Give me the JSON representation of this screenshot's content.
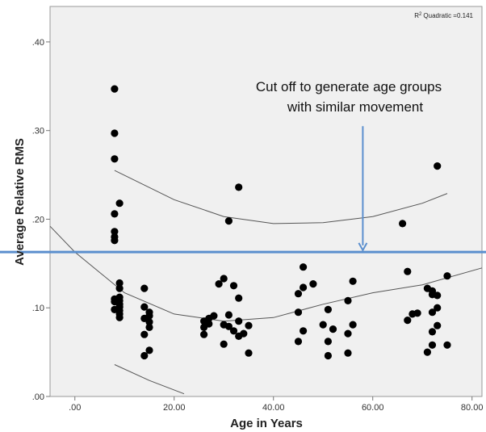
{
  "chart_data": {
    "type": "scatter",
    "xlabel": "Age in Years",
    "ylabel": "Average Relative RMS",
    "xlim": [
      -5,
      82
    ],
    "ylim": [
      0,
      0.44
    ],
    "xticks": [
      0,
      20,
      40,
      60,
      80
    ],
    "xtick_labels": [
      ".00",
      "20.00",
      "40.00",
      "60.00",
      "80.00"
    ],
    "yticks": [
      0,
      0.1,
      0.2,
      0.3,
      0.4
    ],
    "ytick_labels": [
      ".00",
      ".10",
      ".20",
      ".30",
      ".40"
    ],
    "grid": false,
    "r2_label": "Quadratic =0.141",
    "r2_prefix": "R",
    "r2_sup": "2",
    "fit": {
      "type": "quadratic",
      "mean_curve_x": [
        -5,
        0,
        10,
        20,
        30,
        40,
        50,
        60,
        70,
        82
      ],
      "mean_curve_y": [
        0.192,
        0.163,
        0.117,
        0.093,
        0.085,
        0.089,
        0.104,
        0.117,
        0.126,
        0.145
      ],
      "upper_ci_x": [
        8,
        20,
        30,
        40,
        50,
        60,
        70,
        75
      ],
      "upper_ci_y": [
        0.255,
        0.222,
        0.203,
        0.195,
        0.196,
        0.203,
        0.218,
        0.229
      ],
      "lower_ci_x": [
        8,
        15,
        22
      ],
      "lower_ci_y": [
        0.036,
        0.018,
        0.003
      ]
    },
    "threshold": {
      "y": 0.163,
      "color": "#5b8fce"
    },
    "annotation": {
      "line1": "Cut off to generate age groups",
      "line2": "with similar movement",
      "arrow_x": 58,
      "arrow_from_y": 0.305,
      "arrow_to_y": 0.165
    },
    "points": [
      [
        8,
        0.347
      ],
      [
        8,
        0.297
      ],
      [
        8,
        0.268
      ],
      [
        9,
        0.218
      ],
      [
        8,
        0.206
      ],
      [
        8,
        0.186
      ],
      [
        8,
        0.18
      ],
      [
        8,
        0.176
      ],
      [
        9,
        0.128
      ],
      [
        9,
        0.122
      ],
      [
        9,
        0.112
      ],
      [
        8,
        0.11
      ],
      [
        9,
        0.108
      ],
      [
        8,
        0.107
      ],
      [
        9,
        0.104
      ],
      [
        9,
        0.101
      ],
      [
        8,
        0.098
      ],
      [
        9,
        0.097
      ],
      [
        9,
        0.093
      ],
      [
        9,
        0.089
      ],
      [
        14,
        0.122
      ],
      [
        14,
        0.101
      ],
      [
        15,
        0.095
      ],
      [
        15,
        0.091
      ],
      [
        14,
        0.088
      ],
      [
        15,
        0.084
      ],
      [
        15,
        0.078
      ],
      [
        14,
        0.07
      ],
      [
        15,
        0.052
      ],
      [
        14,
        0.046
      ],
      [
        26,
        0.085
      ],
      [
        27,
        0.088
      ],
      [
        28,
        0.091
      ],
      [
        26,
        0.078
      ],
      [
        26,
        0.07
      ],
      [
        27,
        0.082
      ],
      [
        29,
        0.127
      ],
      [
        30,
        0.133
      ],
      [
        32,
        0.125
      ],
      [
        33,
        0.111
      ],
      [
        30,
        0.081
      ],
      [
        31,
        0.092
      ],
      [
        31,
        0.079
      ],
      [
        32,
        0.074
      ],
      [
        34,
        0.071
      ],
      [
        33,
        0.085
      ],
      [
        35,
        0.08
      ],
      [
        30,
        0.059
      ],
      [
        35,
        0.049
      ],
      [
        33,
        0.068
      ],
      [
        31,
        0.198
      ],
      [
        33,
        0.236
      ],
      [
        46,
        0.146
      ],
      [
        46,
        0.123
      ],
      [
        48,
        0.127
      ],
      [
        45,
        0.116
      ],
      [
        45,
        0.095
      ],
      [
        46,
        0.074
      ],
      [
        45,
        0.062
      ],
      [
        51,
        0.098
      ],
      [
        50,
        0.081
      ],
      [
        52,
        0.076
      ],
      [
        51,
        0.062
      ],
      [
        51,
        0.046
      ],
      [
        55,
        0.108
      ],
      [
        55,
        0.071
      ],
      [
        55,
        0.049
      ],
      [
        56,
        0.13
      ],
      [
        56,
        0.081
      ],
      [
        66,
        0.195
      ],
      [
        67,
        0.141
      ],
      [
        68,
        0.093
      ],
      [
        69,
        0.094
      ],
      [
        67,
        0.086
      ],
      [
        71,
        0.122
      ],
      [
        72,
        0.119
      ],
      [
        72,
        0.115
      ],
      [
        73,
        0.1
      ],
      [
        72,
        0.095
      ],
      [
        73,
        0.08
      ],
      [
        72,
        0.073
      ],
      [
        72,
        0.058
      ],
      [
        71,
        0.05
      ],
      [
        75,
        0.136
      ],
      [
        75,
        0.058
      ],
      [
        73,
        0.26
      ],
      [
        73,
        0.114
      ]
    ]
  }
}
